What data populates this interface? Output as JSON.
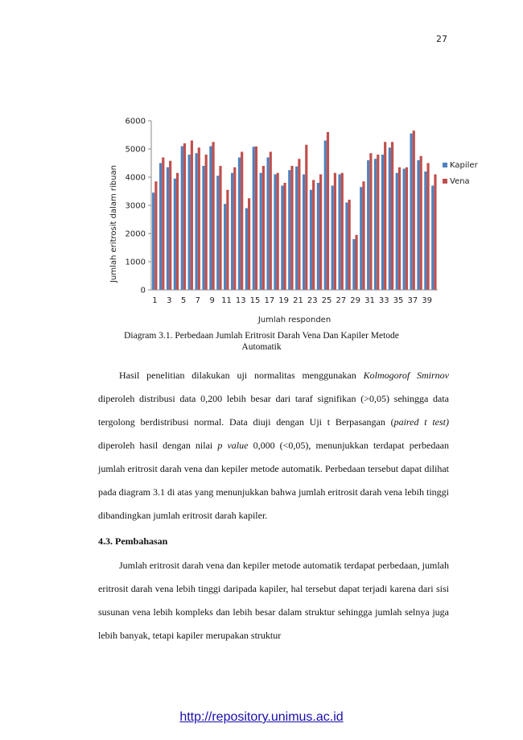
{
  "page_number": "27",
  "caption": {
    "line1": "Diagram 3.1. Perbedaan Jumlah Eritrosit Darah Vena Dan Kapiler Metode",
    "line2": "Automatik"
  },
  "paragraph1": {
    "t1": "Hasil penelitian dilakukan uji normalitas menggunakan ",
    "t2": "Kolmogorof Smirnov",
    "t3": " diperoleh distribusi data 0,200 lebih besar dari taraf signifikan (>0,05) sehingga data tergolong berdistribusi normal. Data diuji dengan Uji t Berpasangan (",
    "t4": "paired t test)",
    "t5": " diperoleh hasil dengan nilai ",
    "t6": "p value",
    "t7": " 0,000 (<0,05), menunjukkan terdapat perbedaan jumlah eritrosit darah vena dan kepiler metode automatik. Perbedaan tersebut dapat dilihat pada diagram 3.1 di atas yang menunjukkan bahwa jumlah eritrosit darah vena lebih tinggi dibandingkan jumlah eritrosit darah kapiler."
  },
  "heading": "4.3. Pembahasan",
  "paragraph2": "Jumlah eritrosit darah vena dan kepiler metode automatik terdapat perbedaan, jumlah eritrosit darah vena lebih tinggi daripada kapiler, hal tersebut dapat terjadi karena dari sisi susunan vena lebih kompleks dan lebih besar dalam struktur sehingga jumlah selnya juga lebih banyak, tetapi kapiler merupakan struktur",
  "footer_url": "http://repository.unimus.ac.id",
  "chart_data": {
    "type": "bar",
    "xlabel": "Jumlah responden",
    "ylabel": "Jumlah eritrosit dalam ribuan",
    "ylim": [
      0,
      6000
    ],
    "yticks": [
      0,
      1000,
      2000,
      3000,
      4000,
      5000,
      6000
    ],
    "grid": false,
    "legend_position": "right",
    "categories": [
      1,
      2,
      3,
      4,
      5,
      6,
      7,
      8,
      9,
      10,
      11,
      12,
      13,
      14,
      15,
      16,
      17,
      18,
      19,
      20,
      21,
      22,
      23,
      24,
      25,
      26,
      27,
      28,
      29,
      30,
      31,
      32,
      33,
      34,
      35,
      36,
      37,
      38,
      39,
      40
    ],
    "tick_labels": [
      "1",
      "3",
      "5",
      "7",
      "9",
      "11",
      "13",
      "15",
      "17",
      "19",
      "21",
      "23",
      "25",
      "27",
      "29",
      "31",
      "33",
      "35",
      "37",
      "39"
    ],
    "series": [
      {
        "name": "Kapiler",
        "color": "#4f81bd",
        "values": [
          3450,
          4500,
          4350,
          3950,
          5100,
          4800,
          4850,
          4400,
          5100,
          4050,
          3050,
          4150,
          4700,
          2900,
          5080,
          4150,
          4700,
          4100,
          3700,
          4250,
          4380,
          4100,
          3550,
          3800,
          5300,
          3700,
          4100,
          3100,
          1800,
          3650,
          4600,
          4650,
          4800,
          5050,
          4150,
          4300,
          5550,
          4600,
          4200,
          3700
        ]
      },
      {
        "name": "Vena",
        "color": "#c0504d",
        "values": [
          3850,
          4700,
          4580,
          4150,
          5200,
          5300,
          5050,
          4800,
          5250,
          4400,
          3550,
          4350,
          4900,
          3250,
          5090,
          4400,
          4900,
          4150,
          3800,
          4400,
          4650,
          5150,
          3900,
          4100,
          5600,
          4150,
          4150,
          3200,
          1950,
          3850,
          4850,
          4800,
          5250,
          5250,
          4350,
          4350,
          5650,
          4750,
          4500,
          4100
        ]
      }
    ]
  }
}
